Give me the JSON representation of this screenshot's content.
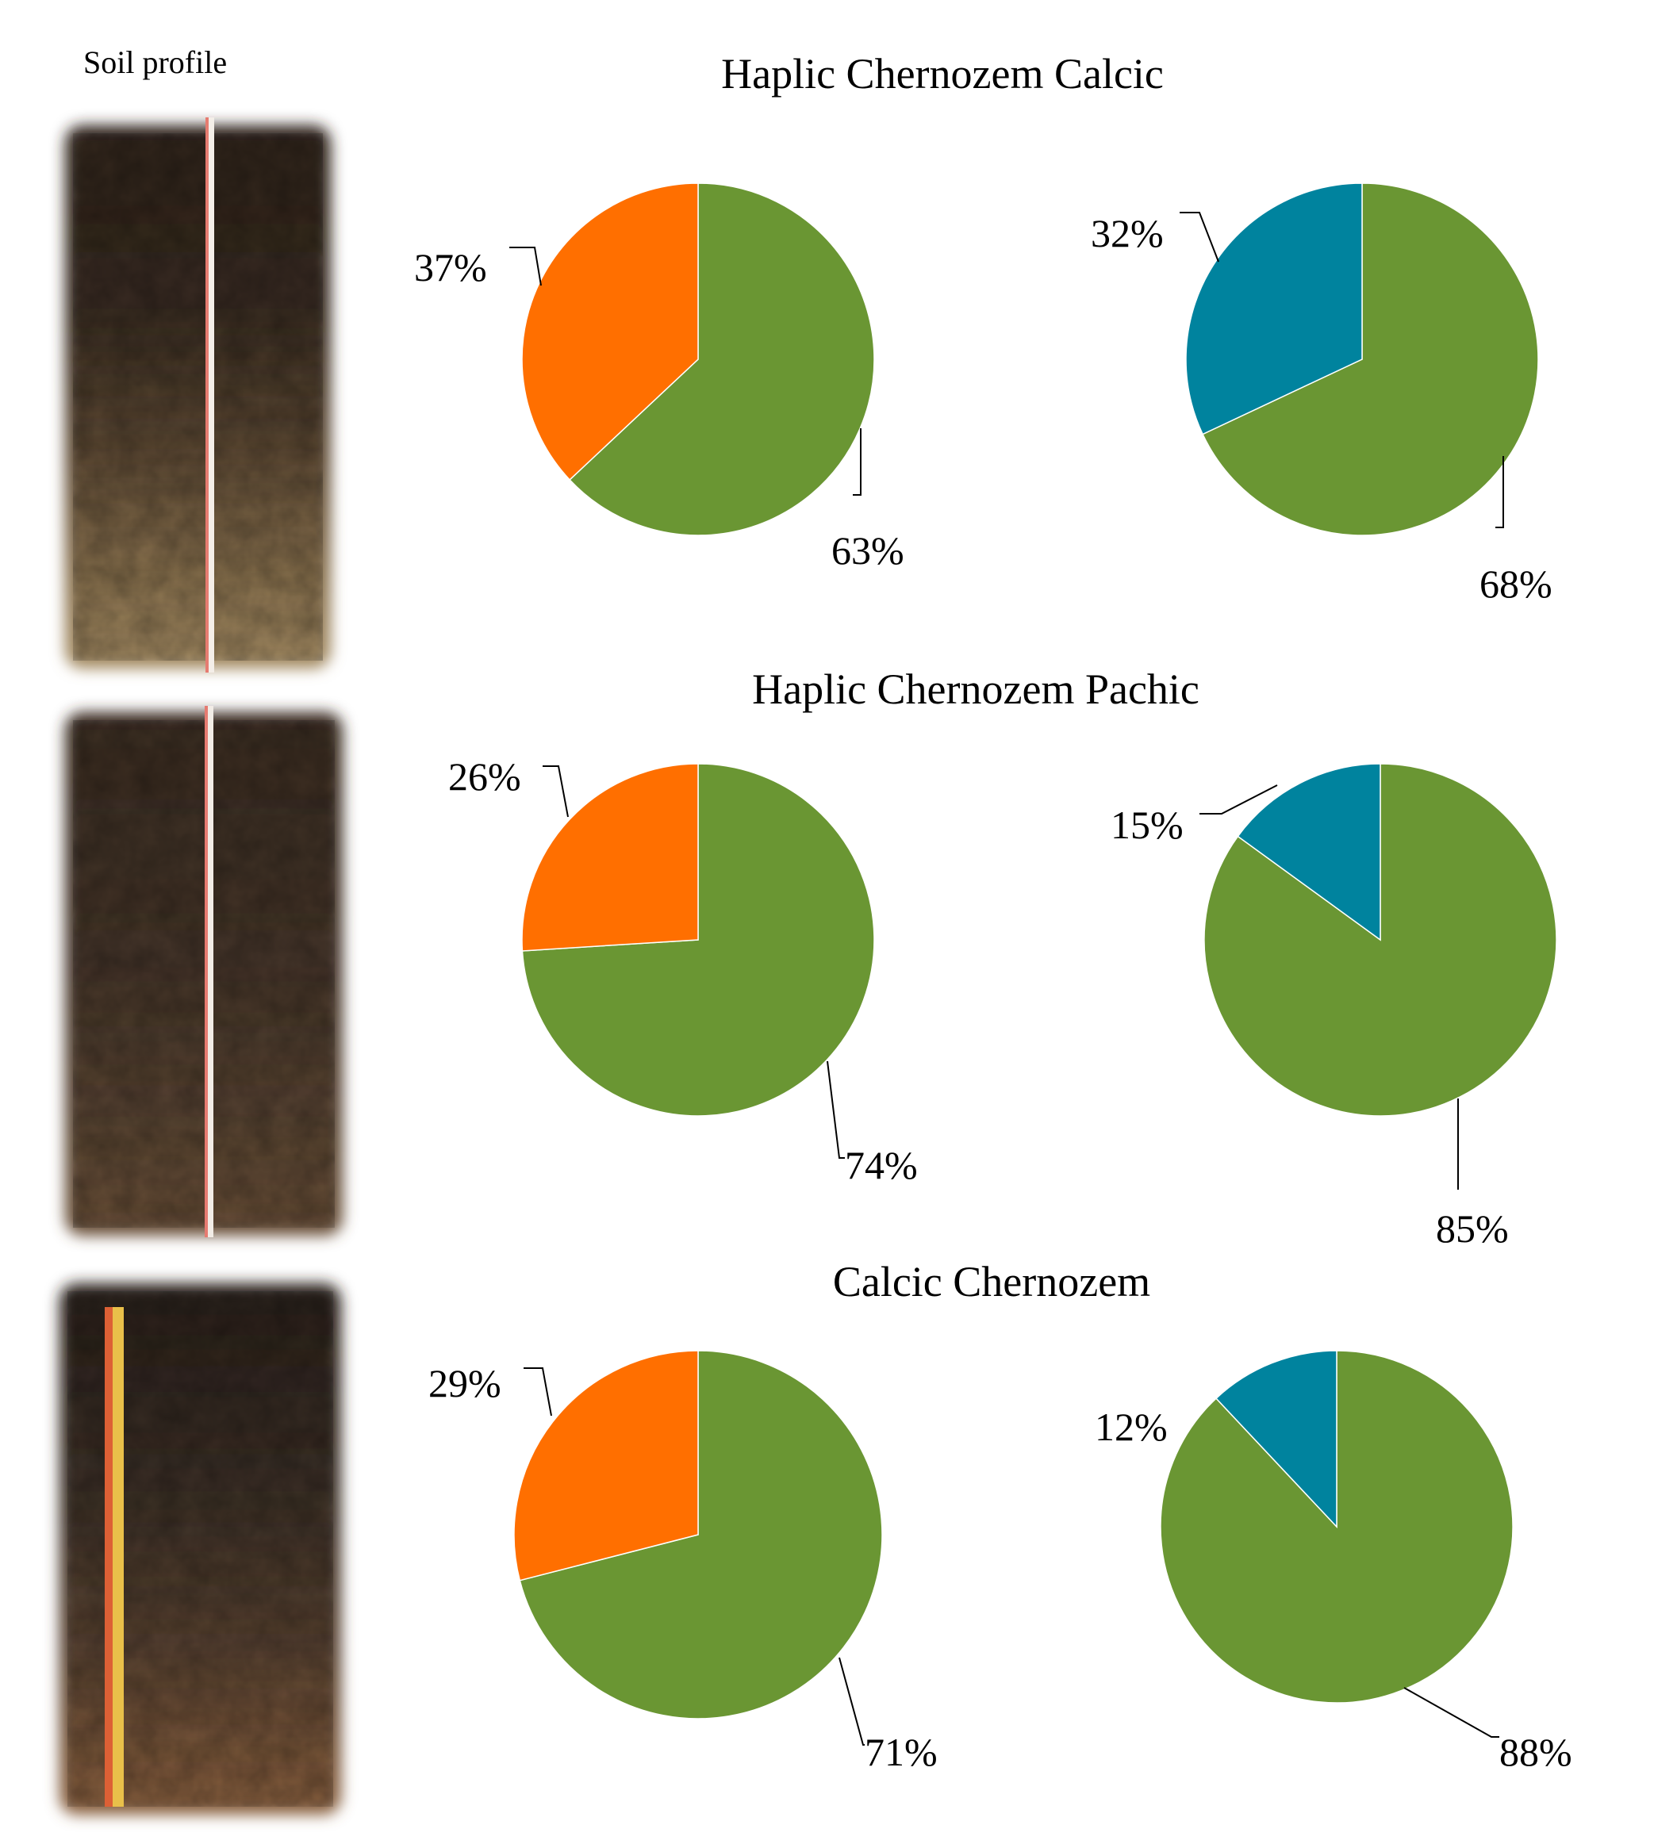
{
  "profile_label": "Soil profile",
  "colors": {
    "green": "#6A9633",
    "orange": "#FF6F00",
    "teal": "#00839E",
    "leader": "#000000"
  },
  "sections": [
    {
      "title": "Haplic Chernozem Calcic"
    },
    {
      "title": "Haplic Chernozem Pachic"
    },
    {
      "title": "Calcic Chernozem"
    }
  ],
  "chart_data": [
    {
      "type": "pie",
      "labels": [
        "37%",
        "63%"
      ],
      "values": [
        37,
        63
      ],
      "colors": [
        "orange",
        "green"
      ]
    },
    {
      "type": "pie",
      "labels": [
        "32%",
        "68%"
      ],
      "values": [
        32,
        68
      ],
      "colors": [
        "teal",
        "green"
      ]
    },
    {
      "type": "pie",
      "labels": [
        "26%",
        "74%"
      ],
      "values": [
        26,
        74
      ],
      "colors": [
        "orange",
        "green"
      ]
    },
    {
      "type": "pie",
      "labels": [
        "15%",
        "85%"
      ],
      "values": [
        15,
        85
      ],
      "colors": [
        "teal",
        "green"
      ]
    },
    {
      "type": "pie",
      "labels": [
        "29%",
        "71%"
      ],
      "values": [
        29,
        71
      ],
      "colors": [
        "orange",
        "green"
      ]
    },
    {
      "type": "pie",
      "labels": [
        "12%",
        "88%"
      ],
      "values": [
        12,
        88
      ],
      "colors": [
        "teal",
        "green"
      ]
    }
  ]
}
